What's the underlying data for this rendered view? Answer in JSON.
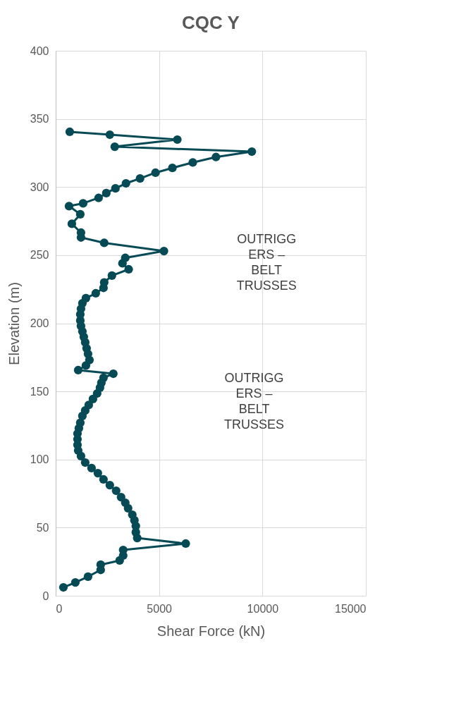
{
  "chart_data": {
    "type": "line",
    "title": "CQC Y",
    "xlabel": "Shear Force (kN)",
    "ylabel": "Elevation (m)",
    "x": [
      374,
      952,
      1564,
      2176,
      2176,
      3094,
      3264,
      3264,
      6290,
      3944,
      3876,
      3876,
      3808,
      3706,
      3502,
      3366,
      3162,
      2924,
      2618,
      2312,
      2040,
      1734,
      1428,
      1224,
      1088,
      1054,
      1054,
      1054,
      1122,
      1190,
      1292,
      1428,
      1598,
      1802,
      2006,
      2142,
      2210,
      2312,
      2788,
      1088,
      1462,
      1632,
      1564,
      1496,
      1428,
      1360,
      1292,
      1224,
      1190,
      1190,
      1224,
      1292,
      1462,
      1938,
      2312,
      2346,
      2720,
      3530,
      3230,
      3366,
      5236,
      2346,
      1224,
      1224,
      782,
      1190,
      646,
      1326,
      2074,
      2448,
      2890,
      3400,
      4080,
      4828,
      5644,
      6630,
      7752,
      9486,
      2856,
      5882,
      2618,
      680
    ],
    "series": [
      {
        "color": "#064a55",
        "values": [
          6.2,
          9.8,
          14,
          19,
          22.8,
          25.9,
          29.5,
          33.6,
          38.3,
          42.4,
          46.6,
          51.2,
          55.4,
          59.5,
          64.2,
          68.3,
          72.4,
          77.1,
          81.2,
          85.4,
          90,
          93.7,
          97.8,
          102.5,
          106.6,
          110.7,
          114.9,
          119,
          123,
          127,
          132,
          136,
          140,
          144.4,
          148.5,
          152.7,
          156.3,
          160,
          163,
          165.6,
          169,
          173,
          177.5,
          181.6,
          186,
          190,
          194,
          198,
          202,
          206.5,
          210.6,
          214.7,
          218.4,
          222,
          226,
          230,
          235,
          239.6,
          244,
          248,
          253,
          259,
          263,
          266.5,
          273,
          280,
          286,
          288,
          292,
          295.5,
          299,
          302.7,
          306.3,
          310.5,
          314,
          318,
          322,
          326,
          329.6,
          334.8,
          338.4,
          340.5
        ]
      }
    ],
    "xlim": [
      0,
      15000
    ],
    "xticks": [
      0,
      5000,
      10000,
      15000
    ],
    "ylim": [
      0,
      400
    ],
    "yticks": [
      0,
      50,
      100,
      150,
      200,
      250,
      300,
      350,
      400
    ],
    "grid": true,
    "marker": "circle",
    "line_style": "solid",
    "annotations": [
      "OUTRIGG\nERS –\nBELT\nTRUSSES",
      "OUTRIGG\nERS –\nBELT\nTRUSSES"
    ]
  }
}
